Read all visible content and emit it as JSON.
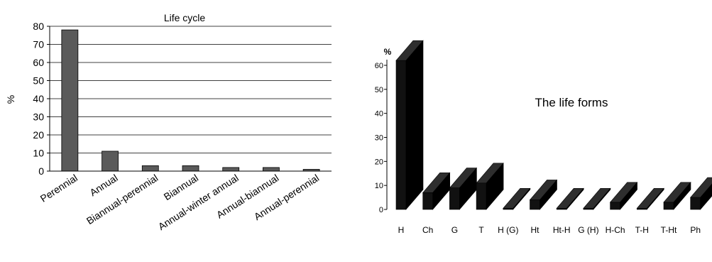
{
  "chart_data": [
    {
      "type": "bar",
      "title": "Life cycle",
      "xlabel": "",
      "ylabel": "%",
      "ylim": [
        0,
        80
      ],
      "yticks": [
        "0",
        "10",
        "20",
        "30",
        "40",
        "50",
        "60",
        "70",
        "80"
      ],
      "categories": [
        "Perennial",
        "Annual",
        "Biannual-perennial",
        "Biannual",
        "Annual-winter annual",
        "Annual-biannual",
        "Annual-perennial"
      ],
      "values": [
        78,
        11,
        3,
        3,
        2,
        2,
        1
      ],
      "grid": true,
      "bar_color": "#5a5a5a"
    },
    {
      "type": "bar",
      "title": "The life forms",
      "xlabel": "",
      "ylabel": "%",
      "ylim": [
        0,
        60
      ],
      "yticks": [
        "0",
        "10",
        "20",
        "30",
        "40",
        "50",
        "60"
      ],
      "categories": [
        "H",
        "Ch",
        "G",
        "T",
        "H (G)",
        "Ht",
        "Ht-H",
        "G (H)",
        "H-Ch",
        "T-H",
        "T-Ht",
        "Ph"
      ],
      "values": [
        62,
        7,
        9,
        11,
        0.5,
        4,
        0.5,
        0.5,
        3,
        0.5,
        3,
        5
      ],
      "grid": false,
      "bar_color": "#111111"
    }
  ]
}
